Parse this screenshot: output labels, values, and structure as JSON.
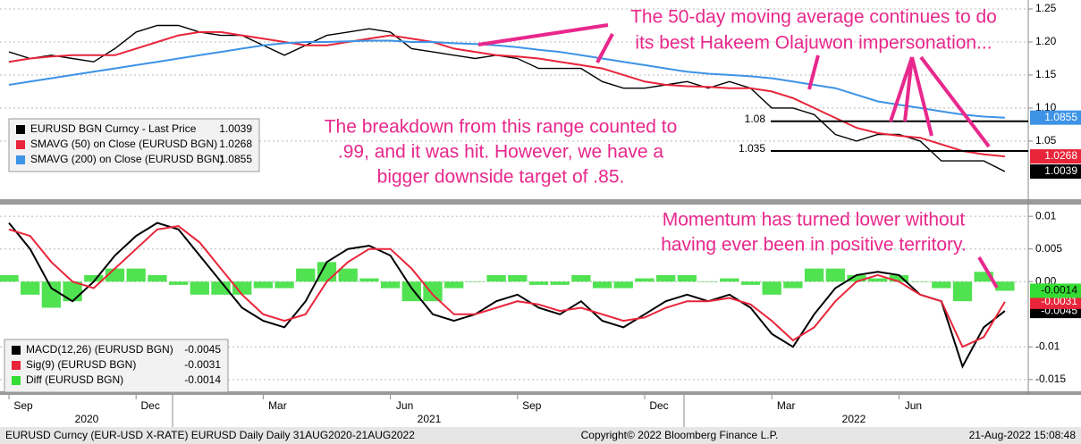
{
  "chart_data": [
    {
      "type": "line",
      "ylim": [
        0.962,
        1.2635
      ],
      "yticks": [
        1.25,
        {
          "value": 1.2,
          "label": "1.20"
        },
        1.15,
        {
          "value": 1.1,
          "label": "1.10"
        },
        1.05
      ],
      "grid": true,
      "series": [
        {
          "name": "EURUSD BGN Curncy - Last Price",
          "color": "#000000",
          "last": 1.0039,
          "values": [
            1.185,
            1.175,
            1.18,
            1.175,
            1.17,
            1.19,
            1.215,
            1.225,
            1.225,
            1.215,
            1.21,
            1.21,
            1.195,
            1.18,
            1.195,
            1.21,
            1.215,
            1.22,
            1.215,
            1.19,
            1.185,
            1.18,
            1.175,
            1.18,
            1.175,
            1.16,
            1.16,
            1.16,
            1.14,
            1.13,
            1.13,
            1.135,
            1.14,
            1.13,
            1.14,
            1.13,
            1.1,
            1.1,
            1.09,
            1.06,
            1.05,
            1.06,
            1.06,
            1.05,
            1.02,
            1.02,
            1.02,
            1.0039
          ]
        },
        {
          "name": "SMAVG (50)  on Close (EURUSD BGN)",
          "color": "#e8253a",
          "last": 1.0268,
          "values": [
            1.17,
            1.175,
            1.178,
            1.18,
            1.18,
            1.18,
            1.19,
            1.2,
            1.21,
            1.215,
            1.215,
            1.21,
            1.205,
            1.2,
            1.195,
            1.195,
            1.2,
            1.205,
            1.21,
            1.205,
            1.2,
            1.19,
            1.185,
            1.18,
            1.178,
            1.175,
            1.17,
            1.165,
            1.16,
            1.15,
            1.14,
            1.135,
            1.133,
            1.132,
            1.13,
            1.13,
            1.125,
            1.115,
            1.1,
            1.085,
            1.07,
            1.062,
            1.058,
            1.055,
            1.045,
            1.035,
            1.03,
            1.0268
          ]
        },
        {
          "name": "SMAVG (200)  on Close (EURUSD BGN)",
          "color": "#3d93e6",
          "last": 1.0855,
          "values": [
            1.135,
            1.14,
            1.145,
            1.15,
            1.155,
            1.16,
            1.165,
            1.17,
            1.175,
            1.18,
            1.185,
            1.19,
            1.195,
            1.198,
            1.2,
            1.2,
            1.201,
            1.202,
            1.202,
            1.2,
            1.2,
            1.198,
            1.197,
            1.195,
            1.192,
            1.188,
            1.185,
            1.18,
            1.175,
            1.17,
            1.165,
            1.16,
            1.155,
            1.152,
            1.15,
            1.148,
            1.145,
            1.14,
            1.135,
            1.13,
            1.12,
            1.11,
            1.105,
            1.1,
            1.095,
            1.09,
            1.087,
            1.0855
          ]
        }
      ],
      "levels": [
        1.08,
        1.035
      ],
      "annotations": [
        [
          "The 50-day moving average continues to do",
          "its best Hakeem Olajuwon impersonation..."
        ],
        [
          "The breakdown from this range counted to",
          ".99, and it was hit. However, we have a",
          "bigger downside target of .85."
        ]
      ]
    },
    {
      "type": "line",
      "ylim": [
        -0.0168,
        0.0118
      ],
      "yticks": [
        0.01,
        0.005,
        {
          "value": 0,
          "label": "0.00"
        },
        -0.01,
        -0.015
      ],
      "grid": true,
      "categories": [
        "Sep",
        null,
        null,
        null,
        null,
        null,
        "Dec",
        null,
        null,
        null,
        null,
        null,
        "Mar",
        null,
        null,
        null,
        null,
        null,
        "Jun",
        null,
        null,
        null,
        null,
        null,
        "Sep",
        null,
        null,
        null,
        null,
        null,
        "Dec",
        null,
        null,
        null,
        null,
        null,
        "Mar",
        null,
        null,
        null,
        null,
        null,
        "Jun",
        null,
        null,
        null,
        null,
        null
      ],
      "year_labels": [
        "2020",
        "2021",
        "2022"
      ],
      "series": [
        {
          "name": "MACD(12,26) (EURUSD BGN)",
          "color": "#000000",
          "last": -0.0045,
          "values": [
            0.009,
            0.005,
            -0.001,
            -0.003,
            0.0,
            0.004,
            0.007,
            0.009,
            0.008,
            0.004,
            0.0,
            -0.004,
            -0.006,
            -0.007,
            -0.003,
            0.003,
            0.005,
            0.0055,
            0.004,
            -0.001,
            -0.005,
            -0.006,
            -0.005,
            -0.003,
            -0.002,
            -0.004,
            -0.005,
            -0.003,
            -0.006,
            -0.007,
            -0.005,
            -0.003,
            -0.002,
            -0.003,
            -0.002,
            -0.004,
            -0.008,
            -0.01,
            -0.005,
            -0.001,
            0.001,
            0.0015,
            0.001,
            -0.002,
            -0.003,
            -0.013,
            -0.007,
            -0.0045
          ]
        },
        {
          "name": "Sig(9) (EURUSD BGN)",
          "color": "#e8253a",
          "last": -0.0031,
          "values": [
            0.008,
            0.007,
            0.003,
            0.0,
            -0.001,
            0.002,
            0.005,
            0.008,
            0.0085,
            0.006,
            0.002,
            -0.002,
            -0.005,
            -0.006,
            -0.005,
            0.0,
            0.003,
            0.005,
            0.005,
            0.002,
            -0.002,
            -0.005,
            -0.005,
            -0.004,
            -0.003,
            -0.0035,
            -0.0045,
            -0.004,
            -0.005,
            -0.006,
            -0.0055,
            -0.004,
            -0.003,
            -0.003,
            -0.0025,
            -0.0035,
            -0.006,
            -0.009,
            -0.007,
            -0.003,
            0.0,
            0.001,
            0.0,
            -0.002,
            -0.003,
            -0.01,
            -0.0085,
            -0.0031
          ]
        },
        {
          "name": "Diff (EURUSD BGN)",
          "color": "#33dd33",
          "type": "bar",
          "last": -0.0014,
          "values": [
            0.001,
            -0.002,
            -0.004,
            -0.003,
            0.001,
            0.002,
            0.002,
            0.001,
            -0.0005,
            -0.002,
            -0.002,
            -0.002,
            -0.001,
            -0.001,
            0.002,
            0.003,
            0.002,
            0.0005,
            -0.001,
            -0.003,
            -0.003,
            -0.001,
            0.0,
            0.001,
            0.001,
            -0.0005,
            -0.0005,
            0.001,
            -0.001,
            -0.001,
            0.0005,
            0.001,
            0.001,
            0.0,
            0.0005,
            -0.0005,
            -0.002,
            -0.001,
            0.002,
            0.002,
            0.001,
            0.0005,
            0.001,
            0.0,
            -0.001,
            -0.003,
            0.0015,
            -0.0014
          ]
        }
      ],
      "annotations": [
        [
          "Momentum has turned lower without",
          "having ever been in positive territory."
        ]
      ]
    }
  ],
  "footer": {
    "left": "EURUSD Curncy (EUR-USD X-RATE) EURUSD Daily  Daily 31AUG2020-21AUG2022",
    "center": "Copyright© 2022 Bloomberg Finance L.P.",
    "right": "21-Aug-2022 15:08:48"
  }
}
